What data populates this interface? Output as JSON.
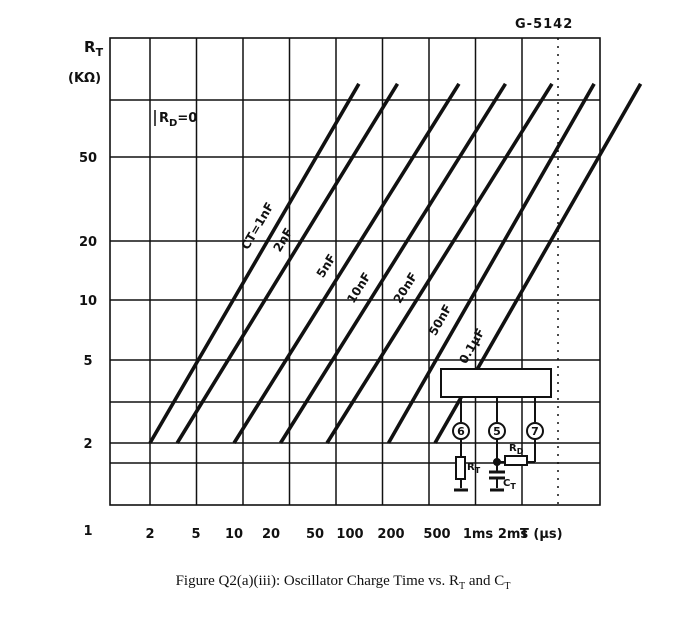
{
  "chart_data": {
    "type": "line",
    "code": "G-5142",
    "y_axis_label": "R",
    "y_axis_label_sub": "T",
    "y_axis_unit": "(KΩ)",
    "x_axis_label": "T (μs)",
    "y_ticks": [
      "1",
      "2",
      "5",
      "10",
      "20",
      "50"
    ],
    "x_ticks": [
      "2",
      "5",
      "10",
      "20",
      "50",
      "100",
      "200",
      "500",
      "1ms",
      "2ms"
    ],
    "condition_label": "RD=0",
    "condition_main": "R",
    "condition_sub": "D",
    "condition_value": "=0",
    "series": [
      {
        "name": "CT=1nF",
        "x": [
          2,
          45
        ],
        "y": [
          2,
          120
        ]
      },
      {
        "name": "2nF",
        "x": [
          3,
          80
        ],
        "y": [
          2,
          120
        ]
      },
      {
        "name": "5nF",
        "x": [
          7,
          200
        ],
        "y": [
          2,
          120
        ]
      },
      {
        "name": "10nF",
        "x": [
          14,
          400
        ],
        "y": [
          2,
          120
        ]
      },
      {
        "name": "20nF",
        "x": [
          28,
          800
        ],
        "y": [
          2,
          120
        ]
      },
      {
        "name": "50nF",
        "x": [
          70,
          1500
        ],
        "y": [
          2,
          120
        ]
      },
      {
        "name": "0.1μF",
        "x": [
          140,
          3000
        ],
        "y": [
          2,
          120
        ]
      }
    ],
    "inset_schematic": {
      "pins": [
        "6",
        "5",
        "7"
      ],
      "rt_main": "R",
      "rt_sub": "T",
      "ct_main": "C",
      "ct_sub": "T",
      "rd_main": "R",
      "rd_sub": "D"
    },
    "grid": true
  },
  "caption": {
    "prefix": "Figure Q2(a)(iii): Oscillator Charge Time vs. R",
    "sub1": "T",
    "mid": " and C",
    "sub2": "T"
  },
  "colors": {
    "ink": "#111111",
    "background": "#ffffff"
  }
}
